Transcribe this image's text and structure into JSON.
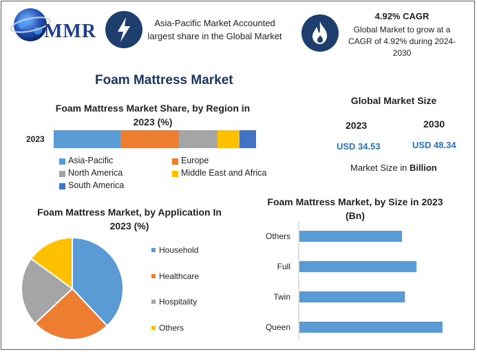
{
  "header": {
    "logo_text": "MMR",
    "info1_text": "Asia-Pacific Market Accounted largest share in the Global Market",
    "cagr_title": "4.92% CAGR",
    "cagr_text": "Global Market to grow at a CAGR of 4.92% during 2024-2030",
    "icon1": "lightning-icon",
    "icon2": "flame-icon"
  },
  "main_title": "Foam Mattress Market",
  "market_size": {
    "title": "Global Market Size",
    "year1": "2023",
    "year2": "2030",
    "value1": "USD 34.53",
    "value2": "USD 48.34",
    "unit_prefix": "Market Size in",
    "unit_bold": "Billion"
  },
  "chart_data": [
    {
      "type": "bar",
      "orientation": "horizontal-stacked",
      "title": "Foam Mattress Market Share, by Region in 2023 (%)",
      "categories": [
        "2023"
      ],
      "series": [
        {
          "name": "Asia-Pacific",
          "values": [
            33
          ],
          "color": "#5b9bd5"
        },
        {
          "name": "Europe",
          "values": [
            29
          ],
          "color": "#ed7d31"
        },
        {
          "name": "North America",
          "values": [
            19
          ],
          "color": "#a5a5a5"
        },
        {
          "name": "Middle East and Africa",
          "values": [
            11
          ],
          "color": "#ffc000"
        },
        {
          "name": "South America",
          "values": [
            8
          ],
          "color": "#4472c4"
        }
      ]
    },
    {
      "type": "pie",
      "title": "Foam Mattress Market, by Application In 2023 (%)",
      "labels": [
        "Household",
        "Healthcare",
        "Hospitality",
        "Others"
      ],
      "values": [
        38,
        25,
        22,
        15
      ],
      "colors": [
        "#5b9bd5",
        "#ed7d31",
        "#a5a5a5",
        "#ffc000"
      ]
    },
    {
      "type": "bar",
      "orientation": "horizontal",
      "title": "Foam Mattress Market, by Size in 2023 (Bn)",
      "categories": [
        "Others",
        "Full",
        "Twin",
        "Queen"
      ],
      "values": [
        7.1,
        8.1,
        7.3,
        9.9
      ],
      "color": "#5b9bd5"
    }
  ]
}
